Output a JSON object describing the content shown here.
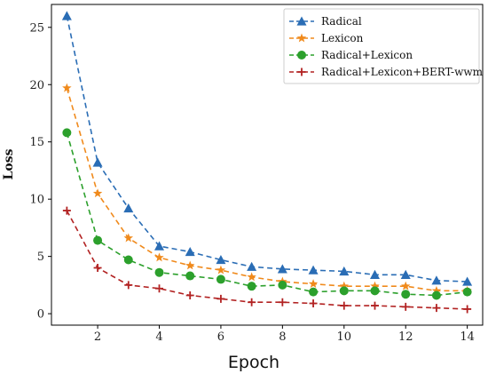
{
  "chart_data": {
    "type": "line",
    "xlabel": "Epoch",
    "ylabel": "Loss",
    "xlim": [
      0.5,
      14.5
    ],
    "ylim": [
      -1,
      27
    ],
    "xticks": [
      2,
      4,
      6,
      8,
      10,
      12,
      14
    ],
    "yticks": [
      0,
      5,
      10,
      15,
      20,
      25
    ],
    "legend_position": "top-right",
    "grid": false,
    "x": [
      1,
      2,
      3,
      4,
      5,
      6,
      7,
      8,
      9,
      10,
      11,
      12,
      13,
      14
    ],
    "series": [
      {
        "name": "Radical",
        "color": "#2a6db5",
        "marker": "triangle",
        "values": [
          26.0,
          13.2,
          9.2,
          5.9,
          5.4,
          4.7,
          4.1,
          3.9,
          3.8,
          3.7,
          3.4,
          3.4,
          2.9,
          2.8
        ]
      },
      {
        "name": "Lexicon",
        "color": "#f08a1c",
        "marker": "star",
        "values": [
          19.7,
          10.5,
          6.6,
          4.9,
          4.2,
          3.8,
          3.2,
          2.8,
          2.6,
          2.4,
          2.4,
          2.4,
          2.0,
          2.0
        ]
      },
      {
        "name": "Radical+Lexicon",
        "color": "#2ca02c",
        "marker": "circle",
        "values": [
          15.8,
          6.4,
          4.7,
          3.6,
          3.3,
          3.0,
          2.4,
          2.5,
          1.9,
          2.0,
          2.0,
          1.7,
          1.6,
          1.9
        ]
      },
      {
        "name": "Radical+Lexicon+BERT-wwm",
        "color": "#b22222",
        "marker": "plus",
        "values": [
          9.0,
          4.0,
          2.5,
          2.2,
          1.6,
          1.3,
          1.0,
          1.0,
          0.9,
          0.7,
          0.7,
          0.6,
          0.5,
          0.4
        ]
      }
    ]
  }
}
